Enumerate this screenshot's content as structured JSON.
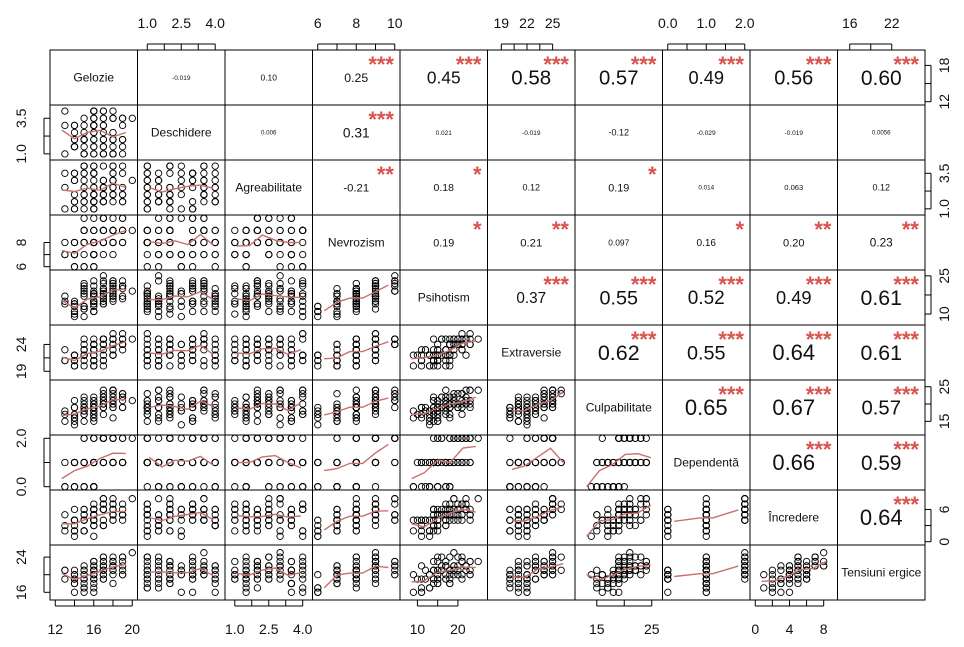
{
  "chart_data": {
    "type": "scatter-matrix",
    "variables": [
      "Gelozie",
      "Deschidere",
      "Agreabilitate",
      "Nevrozism",
      "Psihotism",
      "Extraversie",
      "Culpabilitate",
      "Dependentă",
      "Încredere",
      "Tensiuni ergice"
    ],
    "ranges": [
      [
        12,
        20
      ],
      [
        0.8,
        4.2
      ],
      [
        0.8,
        4.2
      ],
      [
        6,
        10
      ],
      [
        7,
        26
      ],
      [
        18,
        27
      ],
      [
        12,
        26
      ],
      [
        0,
        2
      ],
      [
        0,
        9
      ],
      [
        15,
        26
      ]
    ],
    "top_ticks": {
      "1": [
        1.0,
        2.5,
        4.0
      ],
      "3": [
        6,
        8,
        10
      ],
      "5": [
        19,
        22,
        25
      ],
      "7": [
        0.0,
        1.0,
        2.0
      ],
      "9": [
        16,
        22
      ]
    },
    "top_tick_labels": {
      "1": [
        "1.0",
        "2.5",
        "4.0"
      ],
      "3": [
        "6",
        "8",
        "10"
      ],
      "5": [
        "19",
        "22",
        "25"
      ],
      "7": [
        "0.0",
        "1.0",
        "2.0"
      ],
      "9": [
        "16",
        "22"
      ]
    },
    "bottom_ticks": {
      "0": [
        12,
        16,
        20
      ],
      "2": [
        1.0,
        2.5,
        4.0
      ],
      "4": [
        10,
        20
      ],
      "6": [
        15,
        25
      ],
      "8": [
        0,
        4,
        8
      ]
    },
    "bottom_tick_labels": {
      "0": [
        "12",
        "16",
        "20"
      ],
      "2": [
        "1.0",
        "2.5",
        "4.0"
      ],
      "4": [
        "10",
        "20"
      ],
      "6": [
        "15",
        "25"
      ],
      "8": [
        "0",
        "4",
        "8"
      ]
    },
    "left_ticks": {
      "1": [
        1.0,
        3.5
      ],
      "3": [
        6,
        8
      ],
      "5": [
        19,
        24
      ],
      "7": [
        0.0,
        2.0
      ],
      "9": [
        16,
        24
      ]
    },
    "left_tick_labels": {
      "1": [
        "1.0",
        "3.5"
      ],
      "3": [
        "6",
        "8"
      ],
      "5": [
        "19",
        "24"
      ],
      "7": [
        "0.0",
        "2.0"
      ],
      "9": [
        "16",
        "24"
      ]
    },
    "right_ticks": {
      "0": [
        12,
        18
      ],
      "2": [
        1.0,
        3.5
      ],
      "4": [
        10,
        25
      ],
      "6": [
        15,
        25
      ],
      "8": [
        0,
        6
      ]
    },
    "right_tick_labels": {
      "0": [
        "12",
        "18"
      ],
      "2": [
        "1.0",
        "3.5"
      ],
      "4": [
        "10",
        "25"
      ],
      "6": [
        "15",
        "25"
      ],
      "8": [
        "0",
        "6"
      ]
    },
    "correlations": [
      {
        "row": 0,
        "col": 1,
        "r": "-0.019",
        "stars": ""
      },
      {
        "row": 0,
        "col": 2,
        "r": "0.10",
        "stars": ""
      },
      {
        "row": 0,
        "col": 3,
        "r": "0.25",
        "stars": "***"
      },
      {
        "row": 0,
        "col": 4,
        "r": "0.45",
        "stars": "***"
      },
      {
        "row": 0,
        "col": 5,
        "r": "0.58",
        "stars": "***"
      },
      {
        "row": 0,
        "col": 6,
        "r": "0.57",
        "stars": "***"
      },
      {
        "row": 0,
        "col": 7,
        "r": "0.49",
        "stars": "***"
      },
      {
        "row": 0,
        "col": 8,
        "r": "0.56",
        "stars": "***"
      },
      {
        "row": 0,
        "col": 9,
        "r": "0.60",
        "stars": "***"
      },
      {
        "row": 1,
        "col": 2,
        "r": "0.006",
        "stars": ""
      },
      {
        "row": 1,
        "col": 3,
        "r": "0.31",
        "stars": "***"
      },
      {
        "row": 1,
        "col": 4,
        "r": "0.021",
        "stars": ""
      },
      {
        "row": 1,
        "col": 5,
        "r": "-0.019",
        "stars": ""
      },
      {
        "row": 1,
        "col": 6,
        "r": "-0.12",
        "stars": ""
      },
      {
        "row": 1,
        "col": 7,
        "r": "-0.029",
        "stars": ""
      },
      {
        "row": 1,
        "col": 8,
        "r": "-0.019",
        "stars": ""
      },
      {
        "row": 1,
        "col": 9,
        "r": "0.0056",
        "stars": ""
      },
      {
        "row": 2,
        "col": 3,
        "r": "-0.21",
        "stars": "**"
      },
      {
        "row": 2,
        "col": 4,
        "r": "0.18",
        "stars": "*"
      },
      {
        "row": 2,
        "col": 5,
        "r": "0.12",
        "stars": ""
      },
      {
        "row": 2,
        "col": 6,
        "r": "0.19",
        "stars": "*"
      },
      {
        "row": 2,
        "col": 7,
        "r": "0.014",
        "stars": ""
      },
      {
        "row": 2,
        "col": 8,
        "r": "0.063",
        "stars": ""
      },
      {
        "row": 2,
        "col": 9,
        "r": "0.12",
        "stars": ""
      },
      {
        "row": 3,
        "col": 4,
        "r": "0.19",
        "stars": "*"
      },
      {
        "row": 3,
        "col": 5,
        "r": "0.21",
        "stars": "**"
      },
      {
        "row": 3,
        "col": 6,
        "r": "0.097",
        "stars": ""
      },
      {
        "row": 3,
        "col": 7,
        "r": "0.16",
        "stars": "*"
      },
      {
        "row": 3,
        "col": 8,
        "r": "0.20",
        "stars": "**"
      },
      {
        "row": 3,
        "col": 9,
        "r": "0.23",
        "stars": "**"
      },
      {
        "row": 4,
        "col": 5,
        "r": "0.37",
        "stars": "***"
      },
      {
        "row": 4,
        "col": 6,
        "r": "0.55",
        "stars": "***"
      },
      {
        "row": 4,
        "col": 7,
        "r": "0.52",
        "stars": "***"
      },
      {
        "row": 4,
        "col": 8,
        "r": "0.49",
        "stars": "***"
      },
      {
        "row": 4,
        "col": 9,
        "r": "0.61",
        "stars": "***"
      },
      {
        "row": 5,
        "col": 6,
        "r": "0.62",
        "stars": "***"
      },
      {
        "row": 5,
        "col": 7,
        "r": "0.55",
        "stars": "***"
      },
      {
        "row": 5,
        "col": 8,
        "r": "0.64",
        "stars": "***"
      },
      {
        "row": 5,
        "col": 9,
        "r": "0.61",
        "stars": "***"
      },
      {
        "row": 6,
        "col": 7,
        "r": "0.65",
        "stars": "***"
      },
      {
        "row": 6,
        "col": 8,
        "r": "0.67",
        "stars": "***"
      },
      {
        "row": 6,
        "col": 9,
        "r": "0.57",
        "stars": "***"
      },
      {
        "row": 7,
        "col": 8,
        "r": "0.66",
        "stars": "***"
      },
      {
        "row": 7,
        "col": 9,
        "r": "0.59",
        "stars": "***"
      },
      {
        "row": 8,
        "col": 9,
        "r": "0.64",
        "stars": "***"
      }
    ],
    "grid": false,
    "point_style": "open-circle",
    "smooth_color": "#c97070",
    "star_color": "#d9534f"
  }
}
